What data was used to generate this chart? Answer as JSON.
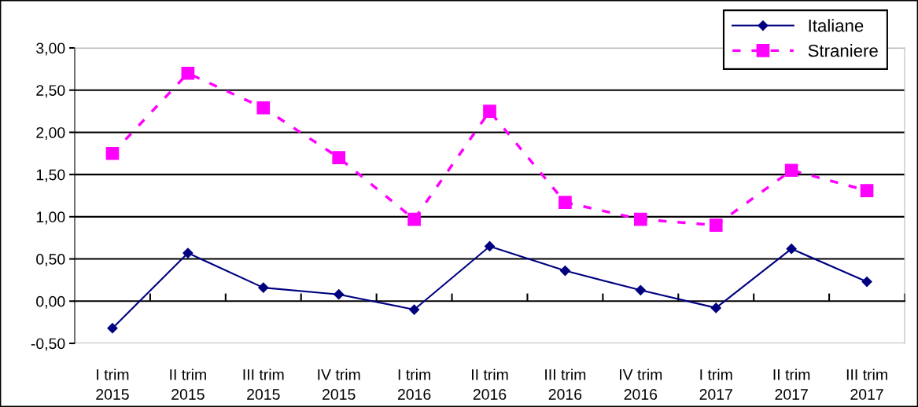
{
  "chart_data": {
    "type": "line",
    "categories": [
      "I trim\n2015",
      "II trim\n2015",
      "III trim\n2015",
      "IV trim\n2015",
      "I trim\n2016",
      "II trim\n2016",
      "III trim\n2016",
      "IV trim\n2016",
      "I trim\n2017",
      "II trim\n2017",
      "III trim\n2017"
    ],
    "series": [
      {
        "name": "Italiane",
        "color": "#000080",
        "marker": "diamond",
        "line_style": "solid",
        "values": [
          -0.32,
          0.57,
          0.16,
          0.08,
          -0.1,
          0.65,
          0.36,
          0.13,
          -0.08,
          0.62,
          0.23
        ]
      },
      {
        "name": "Straniere",
        "color": "#ff00ff",
        "marker": "square",
        "line_style": "dashed",
        "values": [
          1.75,
          2.7,
          2.29,
          1.7,
          0.97,
          2.25,
          1.17,
          0.97,
          0.9,
          1.55,
          1.31
        ]
      }
    ],
    "ylim": [
      -0.5,
      3.0
    ],
    "yticks": [
      {
        "value": -0.5,
        "label": "-0,50"
      },
      {
        "value": 0,
        "label": "0,00"
      },
      {
        "value": 0.5,
        "label": "0,50"
      },
      {
        "value": 1,
        "label": "1,00"
      },
      {
        "value": 1.5,
        "label": "1,50"
      },
      {
        "value": 2,
        "label": "2,00"
      },
      {
        "value": 2.5,
        "label": "2,50"
      },
      {
        "value": 3,
        "label": "3,00"
      }
    ],
    "grid": "y",
    "legend": "top right"
  }
}
